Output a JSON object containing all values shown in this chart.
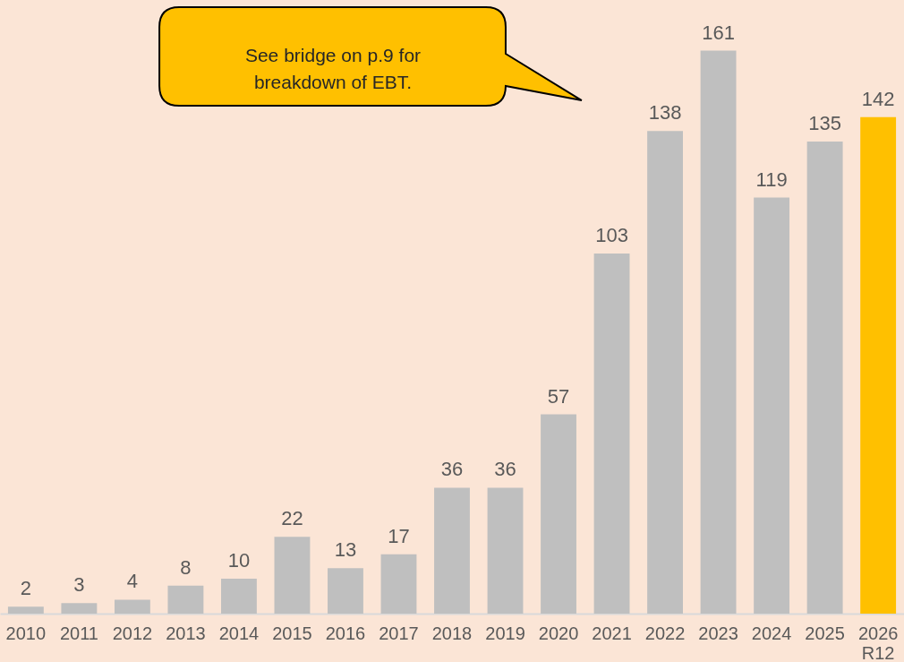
{
  "chart_data": {
    "type": "bar",
    "categories": [
      "2010",
      "2011",
      "2012",
      "2013",
      "2014",
      "2015",
      "2016",
      "2017",
      "2018",
      "2019",
      "2020",
      "2021",
      "2022",
      "2023",
      "2024",
      "2025",
      "2026 R12"
    ],
    "values": [
      2,
      3,
      4,
      8,
      10,
      22,
      13,
      17,
      36,
      36,
      57,
      103,
      138,
      161,
      119,
      135,
      142
    ],
    "colors": [
      "#bfbfbf",
      "#bfbfbf",
      "#bfbfbf",
      "#bfbfbf",
      "#bfbfbf",
      "#bfbfbf",
      "#bfbfbf",
      "#bfbfbf",
      "#bfbfbf",
      "#bfbfbf",
      "#bfbfbf",
      "#bfbfbf",
      "#bfbfbf",
      "#bfbfbf",
      "#bfbfbf",
      "#bfbfbf",
      "#ffc000"
    ],
    "data_labels": true,
    "grid": false,
    "annotations": [
      "See bridge on p.9 for\nbreakdown of EBT."
    ]
  }
}
